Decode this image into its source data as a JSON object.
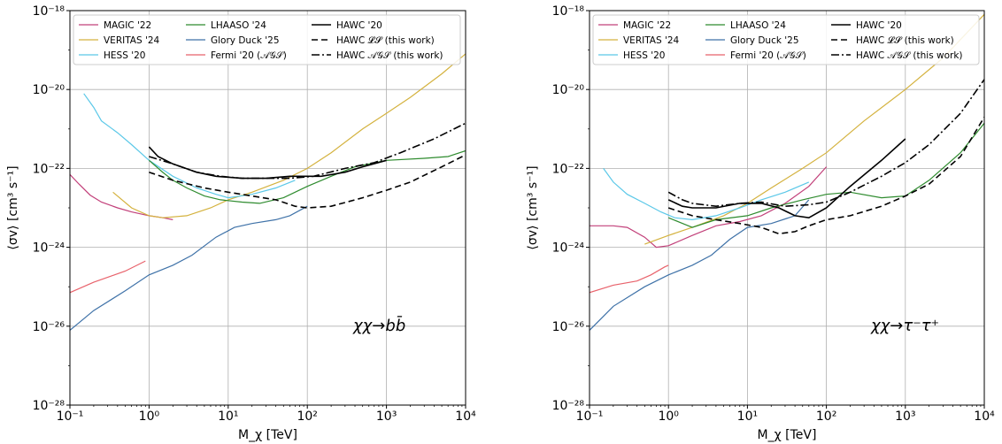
{
  "chart_data": [
    {
      "type": "line",
      "xlabel": "M_χ [TeV]",
      "ylabel": "⟨σv⟩ [cm³ s⁻¹]",
      "xscale": "log",
      "yscale": "log",
      "xlim": [
        0.1,
        10000
      ],
      "ylim": [
        1e-28,
        1e-18
      ],
      "grid": true,
      "legend_position": "top",
      "annotation": "χχ→bb̄",
      "x_tick_labels": [
        "10⁻¹",
        "10⁰",
        "10¹",
        "10²",
        "10³",
        "10⁴"
      ],
      "y_tick_labels": [
        "10⁻²⁸",
        "10⁻²⁶",
        "10⁻²⁴",
        "10⁻²²",
        "10⁻²⁰",
        "10⁻¹⁸"
      ],
      "series": [
        {
          "name": "MAGIC '22",
          "color": "#c2407a",
          "style": "solid",
          "points": [
            [
              0.1,
              7e-23
            ],
            [
              0.13,
              4e-23
            ],
            [
              0.18,
              2.1e-23
            ],
            [
              0.25,
              1.4e-23
            ],
            [
              0.4,
              1e-23
            ],
            [
              0.6,
              7.9e-24
            ],
            [
              1.0,
              6.3e-24
            ],
            [
              1.5,
              5.6e-24
            ],
            [
              2.0,
              5e-24
            ]
          ]
        },
        {
          "name": "VERITAS '24",
          "color": "#d4b23e",
          "style": "solid",
          "points": [
            [
              0.35,
              2.5e-23
            ],
            [
              0.6,
              1e-23
            ],
            [
              1.0,
              6.3e-24
            ],
            [
              1.5,
              5.6e-24
            ],
            [
              3,
              6.3e-24
            ],
            [
              6,
              1e-23
            ],
            [
              10,
              1.6e-23
            ],
            [
              20,
              2.5e-23
            ],
            [
              50,
              5e-23
            ],
            [
              100,
              1e-22
            ],
            [
              200,
              2.5e-22
            ],
            [
              500,
              1e-21
            ],
            [
              1000,
              2.5e-21
            ],
            [
              2000,
              6.3e-21
            ],
            [
              5000,
              2.5e-20
            ],
            [
              10000,
              8e-20
            ]
          ]
        },
        {
          "name": "HESS '20",
          "color": "#5bc8e8",
          "style": "solid",
          "points": [
            [
              0.15,
              7.9e-21
            ],
            [
              0.2,
              3.5e-21
            ],
            [
              0.25,
              1.6e-21
            ],
            [
              0.4,
              8e-22
            ],
            [
              0.6,
              4e-22
            ],
            [
              1,
              1.6e-22
            ],
            [
              2,
              6.3e-23
            ],
            [
              4,
              3.2e-23
            ],
            [
              7,
              2.2e-23
            ],
            [
              10,
              1.8e-23
            ],
            [
              20,
              2.2e-23
            ],
            [
              40,
              3.2e-23
            ],
            [
              70,
              5e-23
            ]
          ]
        },
        {
          "name": "LHAASO '24",
          "color": "#2e8b2e",
          "style": "solid",
          "points": [
            [
              1,
              1.6e-22
            ],
            [
              1.5,
              7.9e-23
            ],
            [
              2,
              5e-23
            ],
            [
              3,
              3.2e-23
            ],
            [
              5,
              2e-23
            ],
            [
              8,
              1.6e-23
            ],
            [
              15,
              1.4e-23
            ],
            [
              25,
              1.3e-23
            ],
            [
              50,
              1.8e-23
            ],
            [
              100,
              3.5e-23
            ],
            [
              200,
              6.3e-23
            ],
            [
              400,
              1.1e-22
            ],
            [
              1000,
              1.6e-22
            ],
            [
              3000,
              1.8e-22
            ],
            [
              6000,
              2e-22
            ],
            [
              10000,
              2.8e-22
            ]
          ]
        },
        {
          "name": "Glory Duck '25",
          "color": "#3f72a8",
          "style": "solid",
          "points": [
            [
              0.1,
              7.9e-27
            ],
            [
              0.2,
              2.5e-26
            ],
            [
              0.5,
              7.9e-26
            ],
            [
              1,
              2e-25
            ],
            [
              2,
              3.5e-25
            ],
            [
              3.5,
              6.3e-25
            ],
            [
              7,
              1.8e-24
            ],
            [
              12,
              3.2e-24
            ],
            [
              20,
              4e-24
            ],
            [
              40,
              5e-24
            ],
            [
              60,
              6.3e-24
            ],
            [
              100,
              1.1e-23
            ]
          ]
        },
        {
          "name": "Fermi '20 (𝒜𝒢𝒮)",
          "color": "#e8626b",
          "style": "solid",
          "points": [
            [
              0.1,
              7.1e-26
            ],
            [
              0.2,
              1.3e-25
            ],
            [
              0.5,
              2.5e-25
            ],
            [
              0.9,
              4.5e-25
            ]
          ]
        },
        {
          "name": "HAWC '20",
          "color": "#000000",
          "style": "solid",
          "points": [
            [
              1,
              3.5e-22
            ],
            [
              1.3,
              2e-22
            ],
            [
              2,
              1.3e-22
            ],
            [
              4,
              8e-23
            ],
            [
              7,
              6.3e-23
            ],
            [
              15,
              5.6e-23
            ],
            [
              30,
              5.6e-23
            ],
            [
              60,
              6.3e-23
            ],
            [
              150,
              6.3e-23
            ],
            [
              300,
              8e-23
            ],
            [
              500,
              1.1e-22
            ],
            [
              1000,
              1.6e-22
            ]
          ]
        },
        {
          "name": "HAWC 𝓛𝓢 (this work)",
          "color": "#000000",
          "style": "dashed",
          "points": [
            [
              1,
              8e-23
            ],
            [
              2,
              5e-23
            ],
            [
              5,
              3.2e-23
            ],
            [
              10,
              2.5e-23
            ],
            [
              20,
              2e-23
            ],
            [
              40,
              1.6e-23
            ],
            [
              70,
              1.1e-23
            ],
            [
              100,
              1e-23
            ],
            [
              200,
              1.1e-23
            ],
            [
              500,
              1.8e-23
            ],
            [
              1000,
              2.8e-23
            ],
            [
              2000,
              4.5e-23
            ],
            [
              5000,
              1.1e-22
            ],
            [
              10000,
              2.2e-22
            ]
          ]
        },
        {
          "name": "HAWC 𝒜𝒢𝒮 (this work)",
          "color": "#000000",
          "style": "dashdot",
          "points": [
            [
              1,
              2e-22
            ],
            [
              2,
              1.3e-22
            ],
            [
              4,
              8e-23
            ],
            [
              8,
              6.3e-23
            ],
            [
              15,
              5.6e-23
            ],
            [
              30,
              5.6e-23
            ],
            [
              60,
              5.6e-23
            ],
            [
              120,
              6.3e-23
            ],
            [
              300,
              1e-22
            ],
            [
              700,
              1.4e-22
            ],
            [
              1500,
              2.5e-22
            ],
            [
              4000,
              5.6e-22
            ],
            [
              10000,
              1.4e-21
            ]
          ]
        }
      ]
    },
    {
      "type": "line",
      "xlabel": "M_χ [TeV]",
      "ylabel": "⟨σv⟩ [cm³ s⁻¹]",
      "xscale": "log",
      "yscale": "log",
      "xlim": [
        0.1,
        10000
      ],
      "ylim": [
        1e-28,
        1e-18
      ],
      "grid": true,
      "legend_position": "top",
      "annotation": "χχ→τ⁻τ⁺",
      "x_tick_labels": [
        "10⁻¹",
        "10⁰",
        "10¹",
        "10²",
        "10³",
        "10⁴"
      ],
      "y_tick_labels": [
        "10⁻²⁸",
        "10⁻²⁶",
        "10⁻²⁴",
        "10⁻²²",
        "10⁻²⁰",
        "10⁻¹⁸"
      ],
      "series": [
        {
          "name": "MAGIC '22",
          "color": "#c2407a",
          "style": "solid",
          "points": [
            [
              0.1,
              3.5e-24
            ],
            [
              0.2,
              3.5e-24
            ],
            [
              0.3,
              3.2e-24
            ],
            [
              0.5,
              1.8e-24
            ],
            [
              0.7,
              1e-24
            ],
            [
              1,
              1.1e-24
            ],
            [
              2,
              2e-24
            ],
            [
              4,
              3.5e-24
            ],
            [
              8,
              4.5e-24
            ],
            [
              15,
              6.3e-24
            ],
            [
              30,
              1.3e-23
            ],
            [
              60,
              3.5e-23
            ],
            [
              100,
              1.1e-22
            ]
          ]
        },
        {
          "name": "VERITAS '24",
          "color": "#d4b23e",
          "style": "solid",
          "points": [
            [
              0.5,
              1.2e-24
            ],
            [
              1,
              2e-24
            ],
            [
              2,
              3.2e-24
            ],
            [
              5,
              6.3e-24
            ],
            [
              10,
              1.3e-23
            ],
            [
              20,
              3.2e-23
            ],
            [
              50,
              1e-22
            ],
            [
              100,
              2.5e-22
            ],
            [
              300,
              1.6e-21
            ],
            [
              1000,
              1e-20
            ],
            [
              3000,
              6.3e-20
            ],
            [
              10000,
              8e-19
            ]
          ]
        },
        {
          "name": "HESS '20",
          "color": "#5bc8e8",
          "style": "solid",
          "points": [
            [
              0.15,
              1e-22
            ],
            [
              0.2,
              4.5e-23
            ],
            [
              0.3,
              2.2e-23
            ],
            [
              0.5,
              1.3e-23
            ],
            [
              0.8,
              7.9e-24
            ],
            [
              1.2,
              5.6e-24
            ],
            [
              2,
              5e-24
            ],
            [
              4,
              6.3e-24
            ],
            [
              8,
              1e-23
            ],
            [
              15,
              1.6e-23
            ],
            [
              30,
              2.5e-23
            ],
            [
              60,
              4.5e-23
            ]
          ]
        },
        {
          "name": "LHAASO '24",
          "color": "#2e8b2e",
          "style": "solid",
          "points": [
            [
              1,
              5.6e-24
            ],
            [
              2,
              3.2e-24
            ],
            [
              4,
              5e-24
            ],
            [
              10,
              6.3e-24
            ],
            [
              20,
              1e-23
            ],
            [
              50,
              1.6e-23
            ],
            [
              100,
              2.2e-23
            ],
            [
              200,
              2.5e-23
            ],
            [
              500,
              1.8e-23
            ],
            [
              1000,
              2e-23
            ],
            [
              2000,
              5e-23
            ],
            [
              5000,
              2.5e-22
            ],
            [
              10000,
              1.4e-21
            ]
          ]
        },
        {
          "name": "Glory Duck '25",
          "color": "#3f72a8",
          "style": "solid",
          "points": [
            [
              0.1,
              7.9e-27
            ],
            [
              0.2,
              3.2e-26
            ],
            [
              0.5,
              1e-25
            ],
            [
              1,
              2e-25
            ],
            [
              2,
              3.5e-25
            ],
            [
              3.5,
              6.3e-25
            ],
            [
              6,
              1.6e-24
            ],
            [
              10,
              3.2e-24
            ],
            [
              20,
              4e-24
            ],
            [
              40,
              6.3e-24
            ],
            [
              60,
              1.6e-23
            ]
          ]
        },
        {
          "name": "Fermi '20 (𝒜𝒢𝒮)",
          "color": "#e8626b",
          "style": "solid",
          "points": [
            [
              0.1,
              7.1e-26
            ],
            [
              0.2,
              1.1e-25
            ],
            [
              0.4,
              1.4e-25
            ],
            [
              0.6,
              2e-25
            ],
            [
              0.9,
              3.2e-25
            ],
            [
              1,
              3.5e-25
            ]
          ]
        },
        {
          "name": "HAWC '20",
          "color": "#000000",
          "style": "solid",
          "points": [
            [
              1,
              1.6e-23
            ],
            [
              1.5,
              1.1e-23
            ],
            [
              2,
              1e-23
            ],
            [
              4,
              1e-23
            ],
            [
              8,
              1.3e-23
            ],
            [
              15,
              1.3e-23
            ],
            [
              25,
              1e-23
            ],
            [
              40,
              6.3e-24
            ],
            [
              60,
              5.6e-24
            ],
            [
              100,
              1e-23
            ],
            [
              200,
              3.5e-23
            ],
            [
              500,
              1.6e-22
            ],
            [
              1000,
              5.6e-22
            ]
          ]
        },
        {
          "name": "HAWC 𝓛𝓢 (this work)",
          "color": "#000000",
          "style": "dashed",
          "points": [
            [
              1,
              1e-23
            ],
            [
              2,
              6.3e-24
            ],
            [
              4,
              5e-24
            ],
            [
              8,
              4e-24
            ],
            [
              15,
              3.2e-24
            ],
            [
              25,
              2.2e-24
            ],
            [
              40,
              2.5e-24
            ],
            [
              60,
              3.5e-24
            ],
            [
              100,
              5e-24
            ],
            [
              200,
              6.3e-24
            ],
            [
              500,
              1.1e-23
            ],
            [
              1000,
              2e-23
            ],
            [
              2000,
              4e-23
            ],
            [
              5000,
              2e-22
            ],
            [
              10000,
              2e-21
            ]
          ]
        },
        {
          "name": "HAWC 𝒜𝒢𝒮 (this work)",
          "color": "#000000",
          "style": "dashdot",
          "points": [
            [
              1,
              2.5e-23
            ],
            [
              1.5,
              1.6e-23
            ],
            [
              2,
              1.3e-23
            ],
            [
              4,
              1.1e-23
            ],
            [
              8,
              1.3e-23
            ],
            [
              15,
              1.4e-23
            ],
            [
              30,
              1.1e-23
            ],
            [
              60,
              1.2e-23
            ],
            [
              100,
              1.4e-23
            ],
            [
              200,
              2.5e-23
            ],
            [
              500,
              6.3e-23
            ],
            [
              1000,
              1.4e-22
            ],
            [
              2000,
              4e-22
            ],
            [
              5000,
              2.5e-21
            ],
            [
              10000,
              1.8e-20
            ]
          ]
        }
      ]
    }
  ]
}
